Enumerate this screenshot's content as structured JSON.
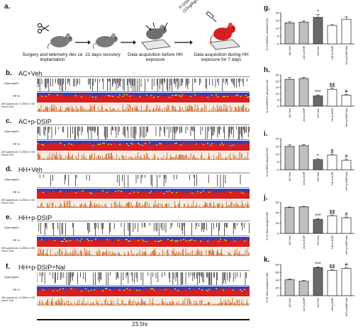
{
  "figure": {
    "panel_a": {
      "letter": "a.",
      "steps": [
        "Surgery and telemetry dev ce implantation",
        "21 days recovery",
        "Data acquisition before HH exposure",
        "Data acquisition  during HH exposure for 7 days"
      ],
      "injection_label": "P-DSIP (10ug/kg/day)"
    },
    "traces": [
      {
        "letter": "b.",
        "condition": "AC+Veh"
      },
      {
        "letter": "c.",
        "condition": "AC+p-DSIP"
      },
      {
        "letter": "d.",
        "condition": "HH+Veh"
      },
      {
        "letter": "e.",
        "condition": "HH+p-DSIP"
      },
      {
        "letter": "f.",
        "condition": "HH+p-DSIP+Nal"
      }
    ],
    "row_labels": {
      "hypnogram": "Hypnogram",
      "pb": "PB %",
      "ar_spectrum": "AR spectrum :0-25Hz 0.00 nano Volt"
    },
    "time_scale": "23.5hr",
    "colors": {
      "pb_red": "#d81e1e",
      "pb_blue": "#2a3fc0",
      "pb_yellow": "#e8d31e",
      "spectrum_orange": "#c85a1a",
      "mouse_red": "#d62020"
    }
  },
  "chart_data": [
    {
      "panel": "g.",
      "type": "bar",
      "ylabel": "% of NREM I sleep/23.5hr",
      "categories": [
        "AC+Veh",
        "AC+p-DSIP",
        "HH+Veh",
        "HH+p-DSIP",
        "HH+p-DSIP+Nal"
      ],
      "values": [
        13.5,
        14,
        17,
        11.8,
        15.8
      ],
      "errors": [
        0.8,
        0.8,
        1.8,
        0.7,
        1.5
      ],
      "significance": [
        "",
        "",
        "*",
        "",
        ""
      ],
      "ylim": [
        0,
        20
      ],
      "yticks": [
        0,
        5,
        10,
        15,
        20
      ]
    },
    {
      "panel": "h.",
      "type": "bar",
      "ylabel": "% of NREM II sleep/23.5hr",
      "categories": [
        "AC+Veh",
        "AC+p-DSIP",
        "HH+Veh",
        "HH+p-DSIP",
        "HH+p-DSIP+Nal"
      ],
      "values": [
        21.5,
        22.2,
        8.2,
        13.5,
        8.8
      ],
      "errors": [
        1.5,
        1,
        0.8,
        1,
        0.6
      ],
      "significance": [
        "",
        "",
        "***",
        "$$",
        "#"
      ],
      "ylim": [
        0,
        25
      ],
      "yticks": [
        0,
        5,
        10,
        15,
        20,
        25
      ]
    },
    {
      "panel": "i.",
      "type": "bar",
      "ylabel": "% of REM sleep/23.5hr",
      "categories": [
        "AC+Veh",
        "AC+p-DSIP",
        "HH+Veh",
        "HH+p-DSIP",
        "HH+p-DSIP+Nal"
      ],
      "values": [
        15,
        15.5,
        6.5,
        9.5,
        6
      ],
      "errors": [
        1,
        0.6,
        0.6,
        0.5,
        0.8
      ],
      "significance": [
        "",
        "",
        "*",
        "$",
        "#"
      ],
      "ylim": [
        0,
        20
      ],
      "yticks": [
        0,
        5,
        10,
        15,
        20
      ]
    },
    {
      "panel": "j.",
      "type": "bar",
      "ylabel": "% of Total sleep/23.5hr",
      "categories": [
        "AC+Veh",
        "AC+p-DSIP",
        "HH+Veh",
        "HH+p-DSIP",
        "HH+p-DSIP+Nal"
      ],
      "values": [
        50,
        51.5,
        27,
        34,
        30
      ],
      "errors": [
        1,
        1,
        1.5,
        1.5,
        1.5
      ],
      "significance": [
        "",
        "",
        "***",
        "$$",
        "#"
      ],
      "ylim": [
        0,
        60
      ],
      "yticks": [
        0,
        20,
        40,
        60
      ]
    },
    {
      "panel": "k.",
      "type": "bar",
      "ylabel": "% of Total awake/23.5hr",
      "categories": [
        "AC+Veh",
        "AC+p-DSIP",
        "HH+Veh",
        "HH+p-DSIP",
        "HH+p-DSIP+Nal"
      ],
      "values": [
        41,
        37,
        72,
        65,
        70
      ],
      "errors": [
        2,
        2,
        2,
        2,
        1.5
      ],
      "significance": [
        "",
        "",
        "***",
        "$$",
        "#"
      ],
      "ylim": [
        0,
        80
      ],
      "yticks": [
        0,
        20,
        40,
        60,
        80
      ]
    }
  ]
}
